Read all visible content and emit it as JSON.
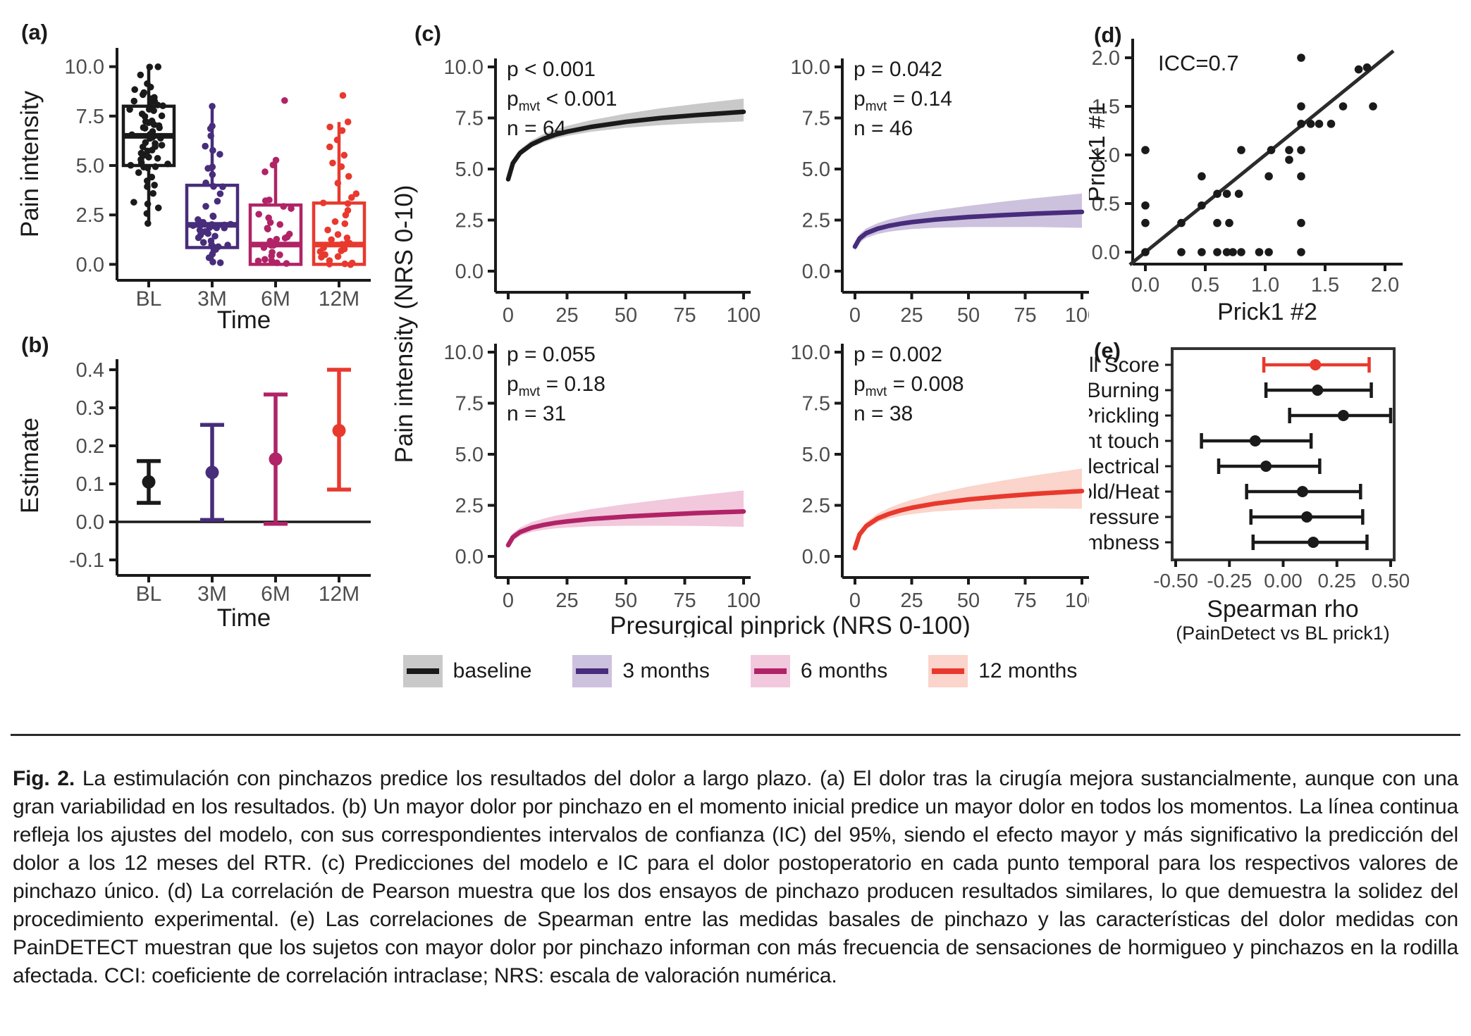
{
  "figure": {
    "letters": {
      "a": "(a)",
      "b": "(b)",
      "c": "(c)",
      "d": "(d)",
      "e": "(e)"
    },
    "legend": {
      "items": [
        {
          "label": "baseline",
          "line": "#1a1a1a",
          "band": "#c9c9c9"
        },
        {
          "label": "3 months",
          "line": "#472d7b",
          "band": "#cdc2de"
        },
        {
          "label": "6 months",
          "line": "#b02366",
          "band": "#f2c8dd"
        },
        {
          "label": "12 months",
          "line": "#e8392e",
          "band": "#fbd4cb"
        }
      ]
    }
  },
  "chart_data": [
    {
      "id": "a",
      "type": "box+jitter",
      "ylabel": "Pain intensity",
      "xlabel": "Time",
      "categories": [
        "BL",
        "3M",
        "6M",
        "12M"
      ],
      "colors": [
        "#1a1a1a",
        "#472d7b",
        "#b02366",
        "#e8392e"
      ],
      "ylim": [
        -0.7,
        10.7
      ],
      "ytick_vals": [
        0,
        2.5,
        5,
        7.5,
        10
      ],
      "ytick_labels": [
        "0.0",
        "2.5",
        "5.0",
        "7.5",
        "10.0"
      ],
      "boxes": [
        {
          "low": 2.0,
          "q1": 5.0,
          "med": 6.5,
          "q3": 8.0,
          "high": 10.0
        },
        {
          "low": 0.0,
          "q1": 0.85,
          "med": 2.0,
          "q3": 4.0,
          "high": 8.0
        },
        {
          "low": 0.0,
          "q1": 0.0,
          "med": 1.0,
          "q3": 3.0,
          "high": 5.2
        },
        {
          "low": 0.0,
          "q1": 0.0,
          "med": 1.0,
          "q3": 3.1,
          "high": 7.2
        }
      ],
      "points": [
        [
          10,
          10,
          9.6,
          9.2,
          9,
          8.8,
          8.7,
          8.6,
          8.5,
          8.4,
          8.3,
          8.2,
          8.1,
          8,
          8,
          7.9,
          7.8,
          7.7,
          7.6,
          7.5,
          7.4,
          7.3,
          7.2,
          7.1,
          7,
          7,
          7,
          6.9,
          6.8,
          6.7,
          6.6,
          6.5,
          6.5,
          6.4,
          6.3,
          6.2,
          6.1,
          6,
          6,
          5.9,
          5.8,
          5.7,
          5.6,
          5.5,
          5.5,
          5.4,
          5.3,
          5.2,
          5.1,
          5,
          5,
          4.9,
          4.8,
          4.6,
          4.4,
          4.2,
          4,
          3.9,
          3.5,
          3.2,
          3,
          2.9,
          2.5,
          2
        ],
        [
          8,
          7,
          6.8,
          6.5,
          6,
          5.8,
          5.5,
          5,
          4.8,
          4.5,
          4.2,
          4,
          3.9,
          3.5,
          3.2,
          3,
          2.5,
          2.4,
          2.3,
          2.2,
          2.2,
          2.1,
          2,
          2,
          2,
          2,
          1.9,
          1.9,
          1.8,
          1.8,
          1.7,
          1.6,
          1.5,
          1.4,
          1.3,
          1.2,
          1.1,
          1,
          1,
          0.9,
          0.8,
          0.7,
          0.5,
          0.3,
          0.1,
          0
        ],
        [
          8.3,
          5.2,
          5,
          4.6,
          3.3,
          3.2,
          3,
          2.9,
          2.5,
          2.3,
          2.2,
          2,
          1.9,
          1.8,
          1.5,
          1.4,
          1.3,
          1.2,
          1.1,
          1,
          1,
          0.9,
          0.8,
          0.7,
          0.5,
          0.4,
          0.3,
          0.2,
          0.1,
          0,
          0
        ],
        [
          8.5,
          7.2,
          7,
          6.7,
          6.3,
          5.9,
          5.5,
          5.2,
          4.9,
          4.5,
          4.1,
          3.6,
          3.3,
          3.1,
          3,
          2.8,
          2.5,
          2.2,
          2,
          1.8,
          1.5,
          1.3,
          1.2,
          1.1,
          1,
          1,
          0.9,
          0.8,
          0.7,
          0.6,
          0.5,
          0.4,
          0.3,
          0.2,
          0.1,
          0,
          0,
          0
        ]
      ]
    },
    {
      "id": "b",
      "type": "errorbar",
      "ylabel": "Estimate",
      "xlabel": "Time",
      "categories": [
        "BL",
        "3M",
        "6M",
        "12M"
      ],
      "colors": [
        "#1a1a1a",
        "#472d7b",
        "#b02366",
        "#e8392e"
      ],
      "ytick_vals": [
        0.4,
        0.3,
        0.2,
        0.1,
        0,
        -0.1
      ],
      "ytick_labels": [
        "0.4",
        "0.3",
        "0.2",
        "0.1",
        "0.0",
        "-0.1"
      ],
      "values": [
        0.105,
        0.13,
        0.165,
        0.24
      ],
      "lo": [
        0.05,
        0.005,
        -0.005,
        0.085
      ],
      "hi": [
        0.16,
        0.255,
        0.335,
        0.4
      ],
      "hline": 0
    },
    {
      "id": "c",
      "type": "line+band",
      "ylabel": "Pain intensity (NRS 0-10)",
      "xlabel": "Presurgical pinprick (NRS 0-100)",
      "ytick_vals": [
        0,
        2.5,
        5,
        7.5,
        10
      ],
      "ytick_labels": [
        "0.0",
        "2.5",
        "5.0",
        "7.5",
        "10.0"
      ],
      "xtick_vals": [
        0,
        25,
        50,
        75,
        100
      ],
      "xtick_labels": [
        "0",
        "25",
        "50",
        "75",
        "100"
      ],
      "subplots": [
        {
          "name": "baseline",
          "color": "#1a1a1a",
          "band": "#c9c9c9",
          "ann": {
            "p": "p < 0.001",
            "pmvt": "< 0.001",
            "n": "n = 64"
          },
          "x": [
            0,
            2,
            5,
            10,
            15,
            20,
            25,
            35,
            50,
            65,
            80,
            100
          ],
          "y": [
            4.5,
            5.29,
            5.78,
            6.21,
            6.48,
            6.68,
            6.83,
            7.06,
            7.31,
            7.5,
            7.64,
            7.8
          ],
          "lo": [
            4.38,
            5.16,
            5.65,
            6.06,
            6.31,
            6.49,
            6.62,
            6.82,
            7.02,
            7.15,
            7.24,
            7.33
          ],
          "hi": [
            4.65,
            5.45,
            5.96,
            6.41,
            6.71,
            6.93,
            7.11,
            7.39,
            7.71,
            7.98,
            8.19,
            8.45
          ]
        },
        {
          "name": "3-months",
          "color": "#472d7b",
          "band": "#cdc2de",
          "ann": {
            "p": "p = 0.042",
            "pmvt": "= 0.14",
            "n": "n = 46"
          },
          "x": [
            0,
            2,
            5,
            10,
            15,
            20,
            25,
            35,
            50,
            65,
            80,
            100
          ],
          "y": [
            1.2,
            1.6,
            1.86,
            2.08,
            2.22,
            2.32,
            2.4,
            2.52,
            2.65,
            2.74,
            2.82,
            2.9
          ],
          "lo": [
            1.0,
            1.39,
            1.63,
            1.82,
            1.93,
            2.0,
            2.06,
            2.12,
            2.16,
            2.16,
            2.16,
            2.12
          ],
          "hi": [
            1.4,
            1.81,
            2.1,
            2.35,
            2.53,
            2.66,
            2.78,
            2.97,
            3.2,
            3.4,
            3.58,
            3.8
          ]
        },
        {
          "name": "6-months",
          "color": "#b02366",
          "band": "#f2c8dd",
          "ann": {
            "p": "p = 0.055",
            "pmvt": "= 0.18",
            "n": "n = 31"
          },
          "x": [
            0,
            2,
            5,
            10,
            15,
            20,
            25,
            35,
            50,
            65,
            80,
            100
          ],
          "y": [
            0.55,
            0.94,
            1.19,
            1.41,
            1.54,
            1.64,
            1.71,
            1.83,
            1.95,
            2.04,
            2.12,
            2.2
          ],
          "lo": [
            0.4,
            0.78,
            1.01,
            1.2,
            1.3,
            1.37,
            1.41,
            1.47,
            1.5,
            1.5,
            1.49,
            1.45
          ],
          "hi": [
            0.73,
            1.14,
            1.41,
            1.68,
            1.85,
            1.99,
            2.1,
            2.31,
            2.56,
            2.77,
            2.98,
            3.23
          ]
        },
        {
          "name": "12-months",
          "color": "#e8392e",
          "band": "#fbd4cb",
          "ann": {
            "p": "p = 0.002",
            "pmvt": "= 0.008",
            "n": "n = 38"
          },
          "x": [
            0,
            2,
            5,
            10,
            15,
            20,
            25,
            35,
            50,
            65,
            80,
            100
          ],
          "y": [
            0.4,
            1.07,
            1.49,
            1.86,
            2.08,
            2.25,
            2.38,
            2.58,
            2.79,
            2.94,
            3.07,
            3.2
          ],
          "lo": [
            0.28,
            0.94,
            1.33,
            1.67,
            1.85,
            1.98,
            2.07,
            2.2,
            2.29,
            2.33,
            2.35,
            2.33
          ],
          "hi": [
            0.55,
            1.24,
            1.69,
            2.1,
            2.37,
            2.59,
            2.77,
            3.06,
            3.42,
            3.71,
            3.98,
            4.3
          ]
        }
      ]
    },
    {
      "id": "d",
      "type": "scatter",
      "annotation": "ICC=0.7",
      "ylabel": "Prick1 #1",
      "xlabel": "Prick1 #2",
      "xtick_vals": [
        0,
        0.5,
        1,
        1.5,
        2
      ],
      "xtick_labels": [
        "0.0",
        "0.5",
        "1.0",
        "1.5",
        "2.0"
      ],
      "ytick_vals": [
        0,
        0.5,
        1,
        1.5,
        2
      ],
      "ytick_labels": [
        "0.0",
        "0.5",
        "1.0",
        "1.5",
        "2.0"
      ],
      "identity_line": [
        -0.13,
        2.07
      ],
      "points": [
        [
          0,
          0
        ],
        [
          0.3,
          0
        ],
        [
          0.47,
          0
        ],
        [
          0.6,
          0
        ],
        [
          0.68,
          0
        ],
        [
          0.73,
          0
        ],
        [
          0.8,
          0
        ],
        [
          0.95,
          0
        ],
        [
          1.03,
          0
        ],
        [
          1.3,
          0
        ],
        [
          0,
          0.3
        ],
        [
          0.3,
          0.3
        ],
        [
          0.6,
          0.3
        ],
        [
          0.7,
          0.3
        ],
        [
          1.3,
          0.3
        ],
        [
          0,
          0.48
        ],
        [
          0.47,
          0.48
        ],
        [
          0.6,
          0.6
        ],
        [
          0.68,
          0.6
        ],
        [
          0.78,
          0.6
        ],
        [
          0.47,
          0.78
        ],
        [
          1.03,
          0.78
        ],
        [
          1.3,
          0.78
        ],
        [
          1.2,
          0.95
        ],
        [
          0,
          1.05
        ],
        [
          0.8,
          1.05
        ],
        [
          1.05,
          1.05
        ],
        [
          1.2,
          1.05
        ],
        [
          1.3,
          1.05
        ],
        [
          1.3,
          1.32
        ],
        [
          1.38,
          1.32
        ],
        [
          1.45,
          1.32
        ],
        [
          1.55,
          1.32
        ],
        [
          1.3,
          1.5
        ],
        [
          1.65,
          1.5
        ],
        [
          1.9,
          1.5
        ],
        [
          1.78,
          1.88
        ],
        [
          1.85,
          1.9
        ],
        [
          1.3,
          2.0
        ]
      ]
    },
    {
      "id": "e",
      "type": "forest",
      "xlabel": "Spearman rho",
      "xlabel_sub": "(PainDetect vs BL prick1)",
      "xtick_vals": [
        -0.5,
        -0.25,
        0,
        0.25,
        0.5
      ],
      "xtick_labels": [
        "-0.50",
        "-0.25",
        "0.00",
        "0.25",
        "0.50"
      ],
      "items": [
        {
          "label": "Full Score",
          "est": 0.15,
          "lo": -0.09,
          "hi": 0.4,
          "color": "#e8392e"
        },
        {
          "label": "Burning",
          "est": 0.16,
          "lo": -0.08,
          "hi": 0.41,
          "color": "#1a1a1a"
        },
        {
          "label": "Prickling",
          "est": 0.28,
          "lo": 0.03,
          "hi": 0.5,
          "color": "#1a1a1a"
        },
        {
          "label": "Light touch",
          "est": -0.13,
          "lo": -0.38,
          "hi": 0.13,
          "color": "#1a1a1a"
        },
        {
          "label": "Electrical",
          "est": -0.08,
          "lo": -0.3,
          "hi": 0.17,
          "color": "#1a1a1a"
        },
        {
          "label": "Cold/Heat",
          "est": 0.09,
          "lo": -0.17,
          "hi": 0.36,
          "color": "#1a1a1a"
        },
        {
          "label": "Pressure",
          "est": 0.11,
          "lo": -0.15,
          "hi": 0.37,
          "color": "#1a1a1a"
        },
        {
          "label": "Numbness",
          "est": 0.14,
          "lo": -0.14,
          "hi": 0.39,
          "color": "#1a1a1a"
        }
      ]
    }
  ],
  "caption": {
    "prefix": "Fig. 2.",
    "text": "La estimulación con pinchazos predice los resultados del dolor a largo plazo. (a) El dolor tras la cirugía mejora sustancialmente, aunque con una gran variabilidad en los resultados. (b) Un mayor dolor por pinchazo en el momento inicial predice un mayor dolor en todos los momentos. La línea continua refleja los ajustes del modelo, con sus correspondientes intervalos de confianza (IC) del 95%, siendo el efecto mayor y más significativo la predicción del dolor a los 12 meses del RTR. (c) Predicciones del modelo e IC para el dolor postoperatorio en cada punto temporal para los respectivos valores de pinchazo único. (d) La correlación de Pearson muestra que los dos ensayos de pinchazo producen resultados similares, lo que demuestra la solidez del procedimiento experimental. (e) Las correlaciones de Spearman entre las medidas basales de pinchazo y las características del dolor medidas con PainDETECT muestran que los sujetos con mayor dolor por pinchazo informan con más frecuencia de sensaciones de hormigueo y pinchazos en la rodilla afectada. CCI: coeficiente de correlación intraclase; NRS: escala de valoración numérica."
  }
}
